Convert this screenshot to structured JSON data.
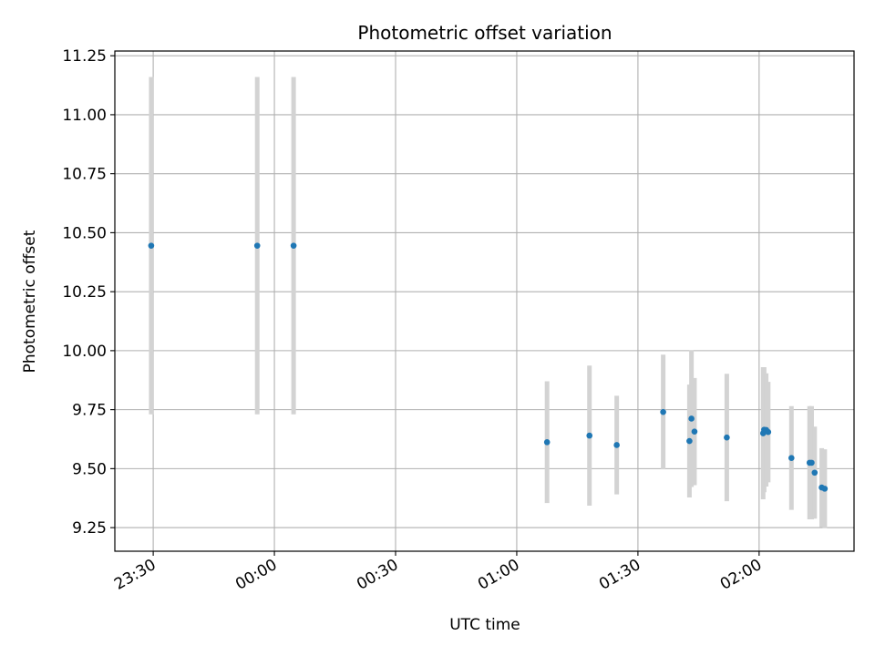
{
  "chart_data": {
    "type": "scatter",
    "title": "Photometric offset variation",
    "xlabel": "UTC time",
    "ylabel": "Photometric offset",
    "x_ticks": [
      "23:30",
      "00:00",
      "00:30",
      "01:00",
      "01:30",
      "02:00"
    ],
    "x_tick_minutes": [
      -30,
      0,
      30,
      60,
      90,
      120
    ],
    "xlim_minutes": [
      -39.5,
      143.5
    ],
    "y_ticks": [
      "9.25",
      "9.50",
      "9.75",
      "10.00",
      "10.25",
      "10.50",
      "10.75",
      "11.00",
      "11.25"
    ],
    "y_tick_values": [
      9.25,
      9.5,
      9.75,
      10.0,
      10.25,
      10.5,
      10.75,
      11.0,
      11.25
    ],
    "ylim": [
      9.15,
      11.27
    ],
    "grid": true,
    "colors": {
      "point": "#1f77b4",
      "errorbar": "#d3d3d3",
      "grid": "#b0b0b0",
      "axes": "#000000"
    },
    "series": [
      {
        "points": [
          {
            "x": "23:29:30",
            "y": 10.445,
            "err": 0.715
          },
          {
            "x": "23:55:45",
            "y": 10.445,
            "err": 0.715
          },
          {
            "x": "00:04:45",
            "y": 10.445,
            "err": 0.715
          },
          {
            "x": "01:07:30",
            "y": 9.612,
            "err": 0.258
          },
          {
            "x": "01:18:00",
            "y": 9.64,
            "err": 0.297
          },
          {
            "x": "01:24:45",
            "y": 9.6,
            "err": 0.209
          },
          {
            "x": "01:36:15",
            "y": 9.74,
            "err": 0.243
          },
          {
            "x": "01:42:45",
            "y": 9.617,
            "err": 0.239
          },
          {
            "x": "01:43:15",
            "y": 9.712,
            "err": 0.29
          },
          {
            "x": "01:44:00",
            "y": 9.657,
            "err": 0.227
          },
          {
            "x": "01:52:00",
            "y": 9.632,
            "err": 0.27
          },
          {
            "x": "02:01:00",
            "y": 9.65,
            "err": 0.28
          },
          {
            "x": "02:01:15",
            "y": 9.665,
            "err": 0.265
          },
          {
            "x": "02:01:45",
            "y": 9.664,
            "err": 0.24
          },
          {
            "x": "02:02:15",
            "y": 9.655,
            "err": 0.213
          },
          {
            "x": "02:08:00",
            "y": 9.545,
            "err": 0.22
          },
          {
            "x": "02:12:30",
            "y": 9.525,
            "err": 0.24
          },
          {
            "x": "02:13:00",
            "y": 9.525,
            "err": 0.24
          },
          {
            "x": "02:13:45",
            "y": 9.483,
            "err": 0.195
          },
          {
            "x": "02:15:30",
            "y": 9.42,
            "err": 0.167
          },
          {
            "x": "02:16:15",
            "y": 9.415,
            "err": 0.167
          }
        ]
      }
    ]
  }
}
